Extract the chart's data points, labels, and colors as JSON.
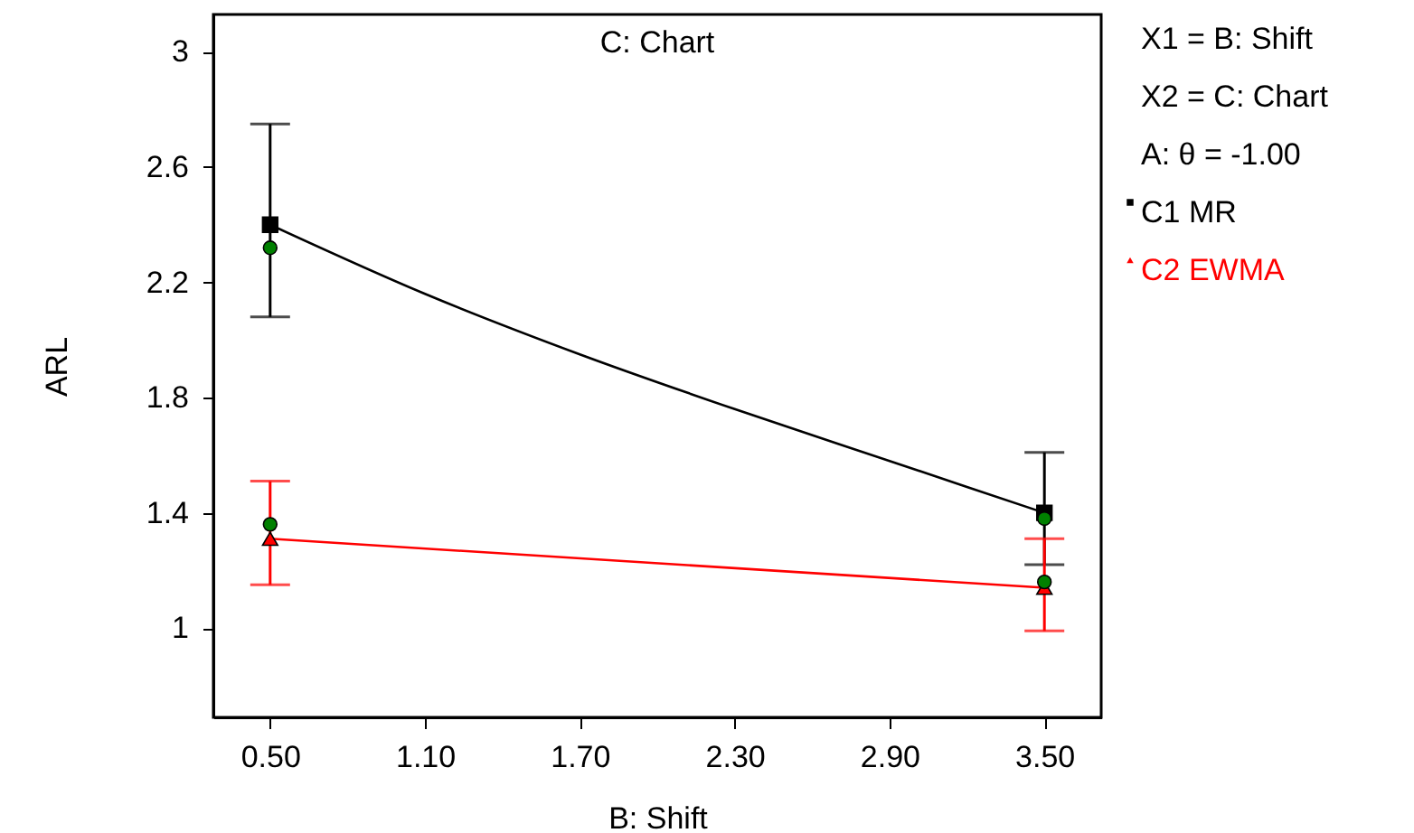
{
  "chart_data": {
    "type": "line",
    "title": "C: Chart",
    "xlabel": "B: Shift",
    "ylabel": "ARL",
    "annotations": [
      "X1 = B: Shift",
      "X2 = C: Chart",
      "A: θ = -1.00"
    ],
    "xlim": [
      0.28,
      3.72
    ],
    "ylim": [
      0.69,
      3.13
    ],
    "xticks": [
      {
        "value": 0.5,
        "label": "0.50"
      },
      {
        "value": 1.1,
        "label": "1.10"
      },
      {
        "value": 1.7,
        "label": "1.70"
      },
      {
        "value": 2.3,
        "label": "2.30"
      },
      {
        "value": 2.9,
        "label": "2.90"
      },
      {
        "value": 3.5,
        "label": "3.50"
      }
    ],
    "yticks": [
      1,
      1.4,
      1.8,
      2.2,
      2.6,
      3
    ],
    "grid": false,
    "legend": "right",
    "series": [
      {
        "color": "#000000",
        "marker": "none",
        "x": [
          0.5,
          1.1,
          1.7,
          2.3,
          2.9,
          3.5
        ],
        "values": [
          2.4,
          2.16,
          1.95,
          1.76,
          1.58,
          1.4
        ]
      },
      {
        "name": "C1 MR",
        "type": "scatter",
        "color": "#000000",
        "marker": "square",
        "x": [
          0.5,
          3.5
        ],
        "values": [
          2.4,
          1.4
        ],
        "errors": [
          [
            2.08,
            2.75
          ],
          [
            1.22,
            1.61
          ]
        ]
      },
      {
        "name": "C2 EWMA",
        "type": "line",
        "color": "#ff0000",
        "marker": "triangle",
        "x": [
          0.5,
          3.5
        ],
        "values": [
          1.31,
          1.14
        ],
        "errors": [
          [
            1.15,
            1.51
          ],
          [
            0.99,
            1.31
          ]
        ]
      },
      {
        "type": "scatter",
        "color": "#008000",
        "marker": "circle",
        "x": [
          0.5,
          0.5,
          3.5,
          3.5
        ],
        "values": [
          2.32,
          1.36,
          1.38,
          1.16
        ]
      }
    ]
  }
}
